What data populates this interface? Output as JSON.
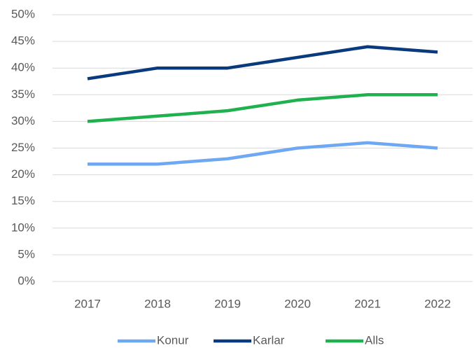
{
  "chart_data": {
    "type": "line",
    "categories": [
      "2017",
      "2018",
      "2019",
      "2020",
      "2021",
      "2022"
    ],
    "series": [
      {
        "name": "Konur",
        "color": "#6fa8f2",
        "values": [
          22,
          22,
          23,
          25,
          26,
          25
        ]
      },
      {
        "name": "Karlar",
        "color": "#0a3a7e",
        "values": [
          38,
          40,
          40,
          42,
          44,
          43
        ]
      },
      {
        "name": "Alls",
        "color": "#1fb14e",
        "values": [
          30,
          31,
          32,
          34,
          35,
          35
        ]
      }
    ],
    "ylim": [
      0,
      50
    ],
    "yticks": [
      {
        "value": 0,
        "label": "0%"
      },
      {
        "value": 5,
        "label": "5%"
      },
      {
        "value": 10,
        "label": "10%"
      },
      {
        "value": 15,
        "label": "15%"
      },
      {
        "value": 20,
        "label": "20%"
      },
      {
        "value": 25,
        "label": "25%"
      },
      {
        "value": 30,
        "label": "30%"
      },
      {
        "value": 35,
        "label": "35%"
      },
      {
        "value": 40,
        "label": "40%"
      },
      {
        "value": 45,
        "label": "45%"
      },
      {
        "value": 50,
        "label": "50%"
      }
    ],
    "grid": true,
    "legend": "bottom"
  }
}
